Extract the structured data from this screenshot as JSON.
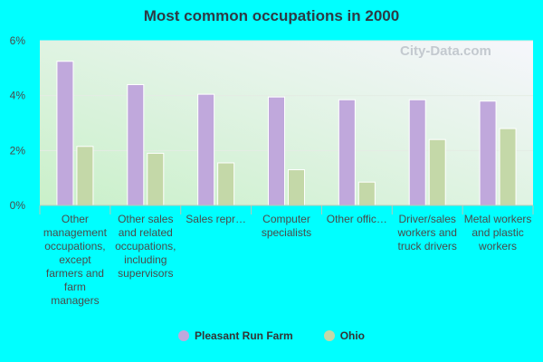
{
  "chart_data": {
    "type": "bar",
    "title": "Most common occupations in 2000",
    "categories": [
      "Other management occupations, except farmers and farm managers",
      "Other sales and related occupations, including supervisors",
      "Sales repr…",
      "Computer specialists",
      "Other offic…",
      "Driver/sales workers and truck drivers",
      "Metal workers and plastic workers"
    ],
    "series": [
      {
        "name": "Pleasant Run Farm",
        "color": "#c0a8dc",
        "values": [
          5.25,
          4.4,
          4.05,
          3.95,
          3.85,
          3.85,
          3.8
        ]
      },
      {
        "name": "Ohio",
        "color": "#c4d8a8",
        "values": [
          2.15,
          1.9,
          1.55,
          1.3,
          0.85,
          2.4,
          2.8
        ]
      }
    ],
    "yticks": [
      "0%",
      "2%",
      "4%",
      "6%"
    ],
    "ylim": [
      0,
      6
    ],
    "grid": true,
    "legend_position": "bottom"
  },
  "watermark": "City-Data.com"
}
